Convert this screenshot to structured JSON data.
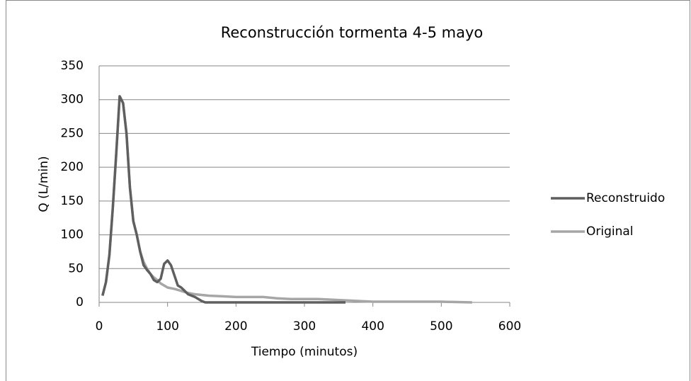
{
  "chart_data": {
    "type": "line",
    "title": "Reconstrucción tormenta 4-5 mayo",
    "x_label": "Tiempo (minutos)",
    "y_label": "Q (L/min)",
    "xlim": [
      0,
      600
    ],
    "xticks": [
      0,
      100,
      200,
      300,
      400,
      500,
      600
    ],
    "ylim": [
      0,
      350
    ],
    "yticks": [
      0,
      50,
      100,
      150,
      200,
      250,
      300,
      350
    ],
    "grid": true,
    "legend": "right",
    "series": [
      {
        "name": "Reconstruido",
        "color": "#5f5f5f",
        "x": [
          5,
          10,
          15,
          20,
          25,
          30,
          35,
          40,
          45,
          50,
          55,
          60,
          65,
          70,
          75,
          80,
          85,
          90,
          95,
          100,
          105,
          110,
          115,
          120,
          125,
          130,
          140,
          150,
          155,
          200,
          250,
          300,
          360
        ],
        "values": [
          10,
          30,
          70,
          140,
          220,
          305,
          295,
          250,
          170,
          120,
          100,
          75,
          55,
          48,
          42,
          33,
          30,
          35,
          57,
          62,
          55,
          40,
          25,
          22,
          17,
          12,
          8,
          2,
          0,
          0,
          0,
          0,
          0
        ]
      },
      {
        "name": "Original",
        "color": "#a6a6a6",
        "x": [
          5,
          10,
          15,
          20,
          25,
          30,
          35,
          40,
          45,
          50,
          55,
          60,
          65,
          70,
          75,
          80,
          85,
          90,
          95,
          100,
          110,
          120,
          130,
          140,
          150,
          160,
          180,
          200,
          240,
          260,
          280,
          320,
          360,
          400,
          450,
          500,
          545
        ],
        "values": [
          10,
          30,
          70,
          140,
          220,
          305,
          295,
          250,
          170,
          120,
          100,
          75,
          60,
          50,
          42,
          37,
          33,
          28,
          25,
          22,
          20,
          17,
          14,
          12,
          11,
          10,
          9,
          8,
          8,
          6,
          5,
          5,
          3,
          1,
          1,
          1,
          0
        ]
      }
    ]
  }
}
